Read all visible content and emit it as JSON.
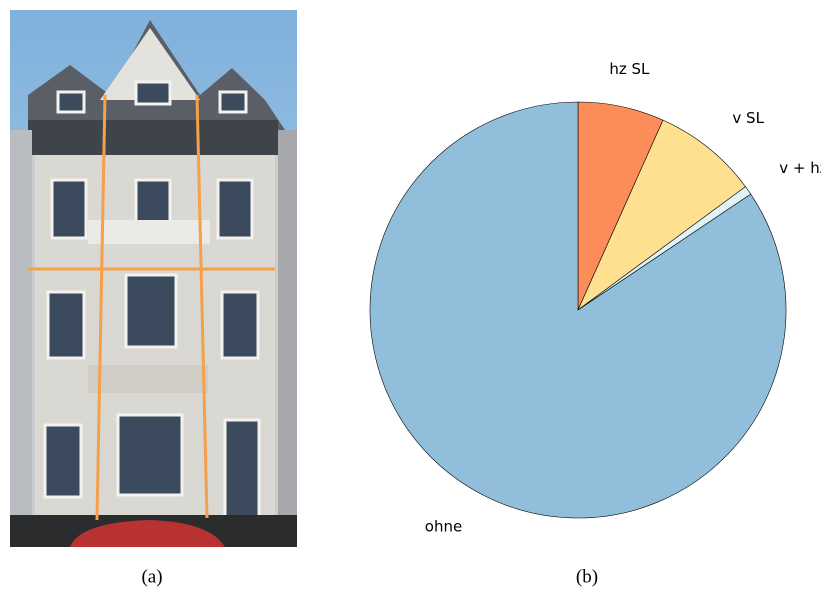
{
  "photo_caption": "(a)",
  "chart_data": {
    "type": "pie",
    "caption": "(b)",
    "categories": [
      "hz SL",
      "v SL",
      "v + hz SL",
      "ohne"
    ],
    "values": [
      6.7,
      8.2,
      0.7,
      84.4
    ],
    "colors": [
      "#fc8d59",
      "#fee090",
      "#e0f3f8",
      "#91bfdb"
    ],
    "start_angle": "top",
    "direction": "clockwise"
  }
}
